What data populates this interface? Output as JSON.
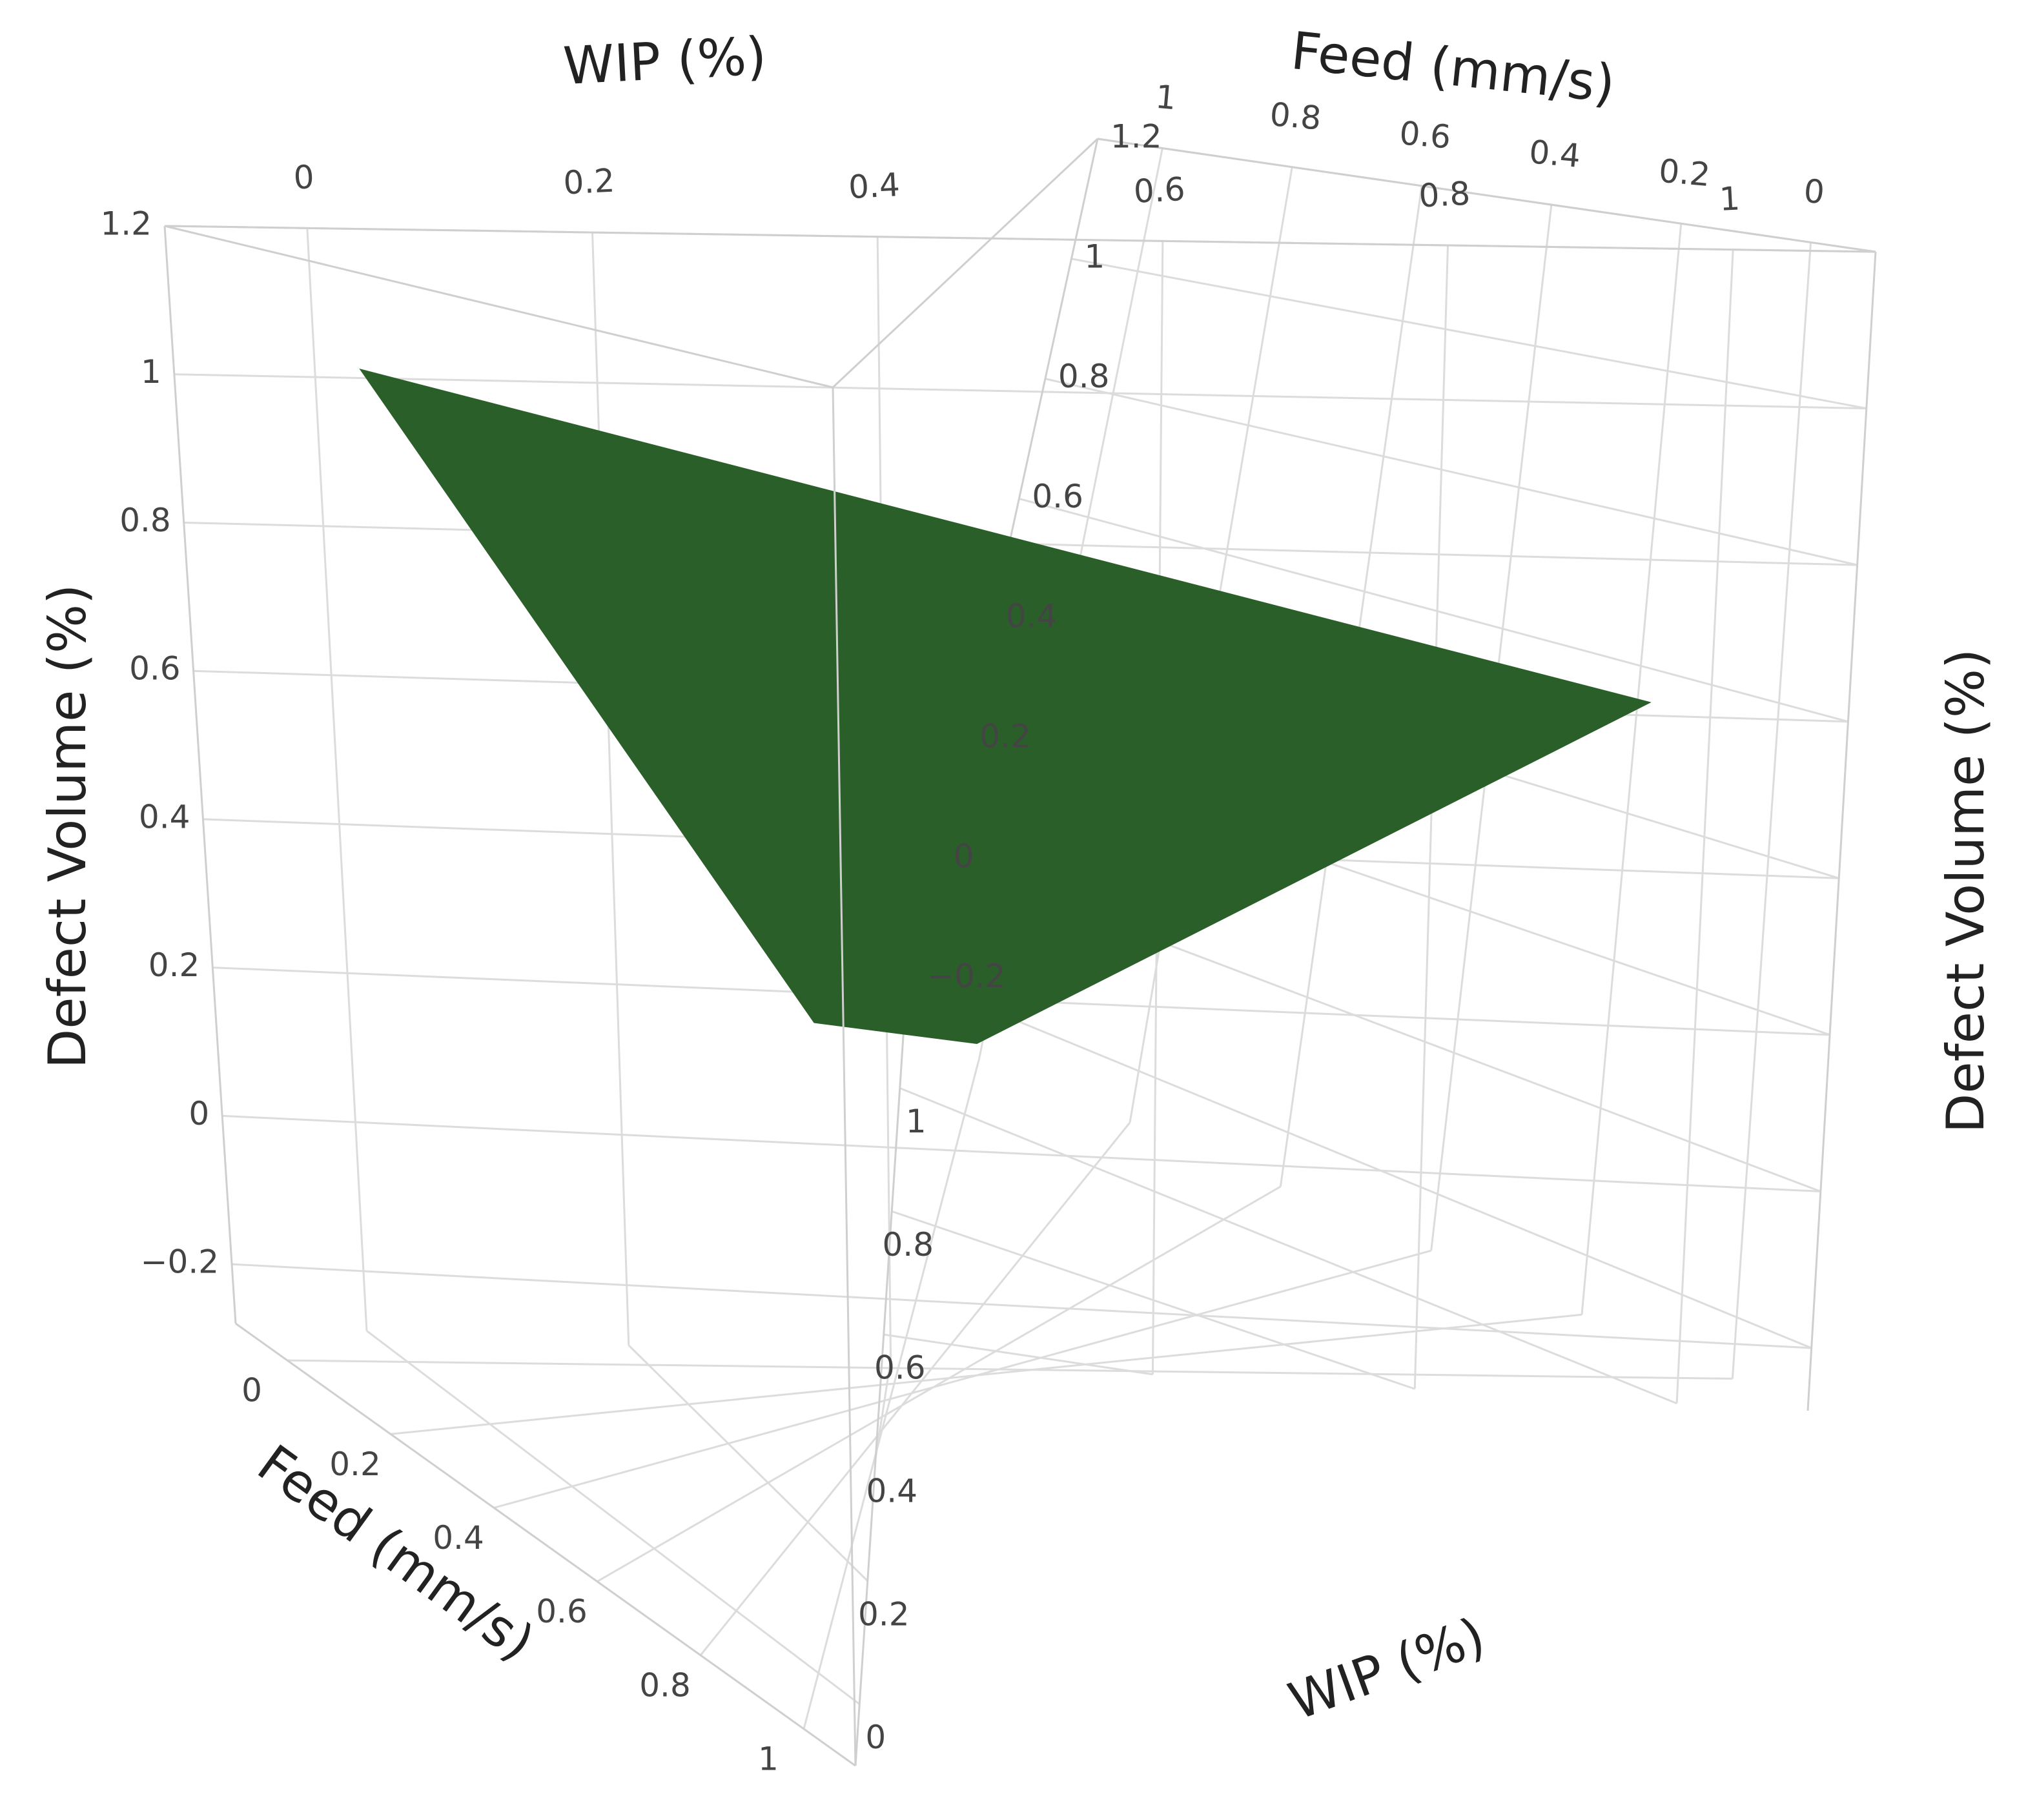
{
  "chart_data": {
    "type": "surface",
    "x_axis": {
      "label": "WIP (%)",
      "range": [
        0,
        1
      ],
      "ticks": [
        "0",
        "0.2",
        "0.4",
        "0.6",
        "0.8",
        "1"
      ]
    },
    "y_axis": {
      "label": "Feed (mm/s)",
      "range": [
        0,
        1
      ],
      "ticks": [
        "0",
        "0.2",
        "0.4",
        "0.6",
        "0.8",
        "1"
      ]
    },
    "z_axis": {
      "label": "Defect Volume (%)",
      "range": [
        -0.2,
        1.2
      ],
      "ticks": [
        "−0.2",
        "0",
        "0.2",
        "0.4",
        "0.6",
        "0.8",
        "1",
        "1.2"
      ]
    },
    "surface": {
      "color": "#2a5f29",
      "corners": [
        {
          "wip": 0,
          "feed": 0,
          "defect_volume": 1.03
        },
        {
          "wip": 1,
          "feed": 0,
          "defect_volume": 0.6
        },
        {
          "wip": 0,
          "feed": 1,
          "defect_volume": 0.45
        },
        {
          "wip": 1,
          "feed": 1,
          "defect_volume": -0.17
        }
      ]
    },
    "grid": true,
    "legend": "none"
  }
}
